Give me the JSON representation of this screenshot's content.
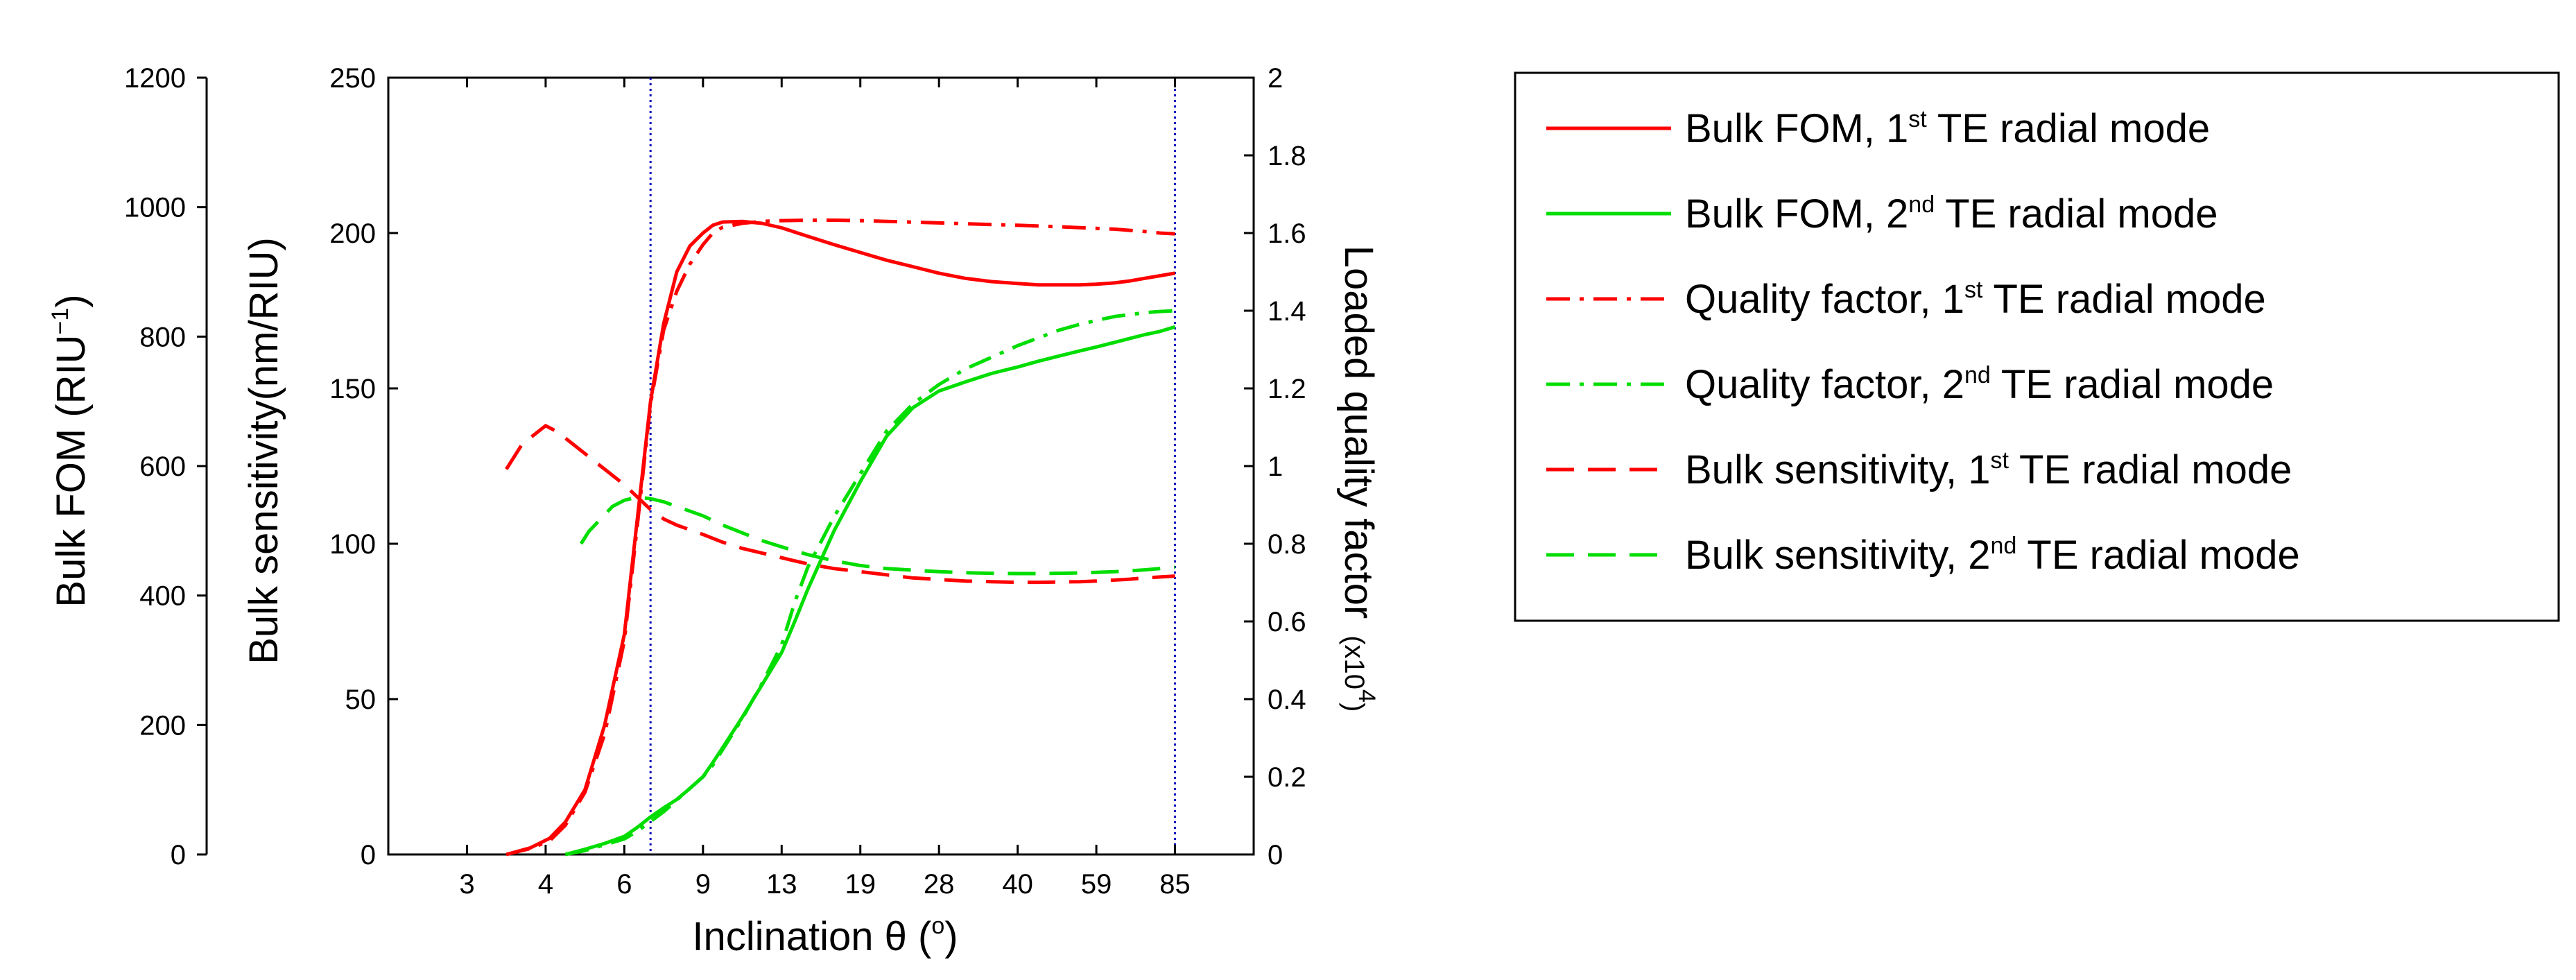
{
  "chart_data": {
    "type": "line",
    "title": "",
    "xlabel": "Inclination θ (",
    "xlabel_sup": "o",
    "xlabel_end": ")",
    "x_axis_scale": "index (non-uniform theta values)",
    "x_ticks": [
      "3",
      "4",
      "6",
      "9",
      "13",
      "19",
      "28",
      "40",
      "59",
      "85"
    ],
    "xlim": [
      2,
      86
    ],
    "vertical_markers": [
      7,
      85
    ],
    "y_axis_fom": {
      "label": "Bulk FOM (RIU",
      "label_sup": "−1",
      "label_end": ")",
      "range": [
        0,
        1200
      ],
      "ticks": [
        "0",
        "200",
        "400",
        "600",
        "800",
        "1000",
        "1200"
      ]
    },
    "y_axis_sensitivity": {
      "label": "Bulk sensitivity(nm/RIU)",
      "range": [
        0,
        250
      ],
      "ticks": [
        "0",
        "50",
        "100",
        "150",
        "200",
        "250"
      ]
    },
    "y_axis_q": {
      "label": "Loaded quality factor",
      "label_unit": "(x10",
      "label_unit_sup": "4",
      "label_unit_end": ")",
      "range": [
        0,
        2
      ],
      "ticks": [
        "0",
        "0.2",
        "0.4",
        "0.6",
        "0.8",
        "1",
        "1.2",
        "1.4",
        "1.6",
        "1.8",
        "2"
      ]
    },
    "colors": {
      "red": "#ff0000",
      "green": "#00dd00",
      "marker": "#0000bb"
    },
    "series": [
      {
        "name": "Bulk FOM, 1st TE radial mode",
        "axis": "fom",
        "color": "red",
        "style": "solid",
        "theta": [
          3.5,
          3.8,
          4.1,
          4.5,
          5,
          5.5,
          6,
          6.5,
          7,
          7.5,
          8,
          8.5,
          9,
          9.5,
          10,
          11,
          12,
          13,
          15,
          17,
          19,
          22,
          25,
          28,
          32,
          36,
          40,
          45,
          50,
          55,
          59,
          65,
          70,
          75,
          80,
          85
        ],
        "values": [
          0,
          10,
          25,
          50,
          100,
          200,
          340,
          520,
          700,
          820,
          900,
          940,
          960,
          972,
          977,
          978,
          975,
          968,
          955,
          942,
          930,
          918,
          908,
          898,
          890,
          885,
          882,
          880,
          880,
          880,
          881,
          883,
          886,
          890,
          894,
          898
        ]
      },
      {
        "name": "Bulk FOM, 2nd TE radial mode",
        "axis": "fom",
        "color": "green",
        "style": "solid",
        "theta": [
          4.5,
          5,
          5.5,
          6,
          6.5,
          7,
          7.5,
          8,
          8.5,
          9,
          9.5,
          10,
          11,
          12,
          13,
          14,
          15,
          17,
          19,
          22,
          25,
          28,
          32,
          36,
          40,
          45,
          50,
          55,
          59,
          65,
          70,
          75,
          80,
          85
        ],
        "values": [
          0,
          8,
          17,
          28,
          42,
          58,
          72,
          85,
          102,
          120,
          142,
          165,
          212,
          262,
          312,
          360,
          410,
          500,
          576,
          646,
          690,
          716,
          730,
          743,
          753,
          762,
          770,
          778,
          784,
          791,
          797,
          803,
          808,
          815
        ]
      },
      {
        "name": "Quality factor, 1st TE radial mode",
        "axis": "q",
        "color": "red",
        "style": "dashdot",
        "theta": [
          3.5,
          3.8,
          4.1,
          4.5,
          5,
          5.5,
          6,
          6.5,
          7,
          7.5,
          8,
          8.5,
          9,
          9.5,
          10,
          11,
          12,
          13,
          15,
          17,
          19,
          22,
          25,
          28,
          32,
          36,
          40,
          45,
          50,
          55,
          59,
          65,
          70,
          75,
          80,
          85
        ],
        "values": [
          0,
          0.015,
          0.035,
          0.075,
          0.16,
          0.31,
          0.55,
          0.85,
          1.16,
          1.35,
          1.45,
          1.52,
          1.57,
          1.6,
          1.615,
          1.625,
          1.63,
          1.632,
          1.633,
          1.633,
          1.632,
          1.63,
          1.628,
          1.626,
          1.624,
          1.622,
          1.62,
          1.618,
          1.616,
          1.614,
          1.612,
          1.61,
          1.607,
          1.604,
          1.6,
          1.598
        ]
      },
      {
        "name": "Quality factor, 2nd TE radial mode",
        "axis": "q",
        "color": "green",
        "style": "dashdot",
        "theta": [
          4.5,
          5,
          5.5,
          6,
          6.5,
          7,
          7.5,
          8,
          8.5,
          9,
          9.5,
          10,
          11,
          12,
          13,
          14,
          15,
          17,
          19,
          22,
          25,
          28,
          32,
          36,
          40,
          45,
          50,
          55,
          59,
          65,
          70,
          75,
          80,
          85
        ],
        "values": [
          0,
          0.01,
          0.025,
          0.04,
          0.06,
          0.085,
          0.11,
          0.14,
          0.17,
          0.2,
          0.23,
          0.27,
          0.35,
          0.44,
          0.54,
          0.65,
          0.74,
          0.87,
          0.98,
          1.09,
          1.16,
          1.21,
          1.25,
          1.28,
          1.31,
          1.33,
          1.35,
          1.365,
          1.375,
          1.385,
          1.39,
          1.395,
          1.398,
          1.4
        ]
      },
      {
        "name": "Bulk sensitivity, 1st TE radial mode",
        "axis": "sens",
        "color": "red",
        "style": "dashed",
        "theta": [
          3.5,
          3.7,
          3.9,
          4,
          4.3,
          4.7,
          5,
          5.5,
          6,
          6.5,
          7,
          7.5,
          8,
          9,
          10,
          11,
          12,
          13,
          15,
          17,
          19,
          22,
          25,
          28,
          32,
          36,
          40,
          45,
          50,
          55,
          59,
          65,
          70,
          75,
          80,
          85
        ],
        "values": [
          124,
          132,
          136,
          138,
          136,
          132,
          129,
          124,
          119,
          115,
          111,
          108,
          106,
          103,
          100.5,
          98.5,
          97,
          95.5,
          93.5,
          92,
          91,
          90,
          89,
          88.5,
          88,
          87.8,
          87.6,
          87.6,
          87.7,
          87.8,
          88,
          88.3,
          88.6,
          89,
          89.3,
          89.6
        ]
      },
      {
        "name": "Bulk sensitivity, 2nd TE radial mode",
        "axis": "sens",
        "color": "green",
        "style": "dashed",
        "theta": [
          4.9,
          5.1,
          5.4,
          5.7,
          6,
          6.5,
          7,
          7.5,
          8,
          9,
          10,
          11,
          12,
          13,
          15,
          17,
          19,
          22,
          25,
          28,
          32,
          36,
          40,
          45,
          50,
          55,
          59,
          65,
          70,
          75,
          80,
          85
        ],
        "values": [
          100,
          104,
          108,
          112,
          114,
          115,
          114.5,
          113.5,
          112,
          109,
          106,
          103.5,
          101,
          99,
          96.5,
          94.5,
          93,
          92,
          91.5,
          91,
          90.7,
          90.5,
          90.4,
          90.4,
          90.5,
          90.6,
          90.8,
          91,
          91.3,
          91.6,
          92,
          92.4
        ]
      }
    ],
    "legend": {
      "placement": "right, outside plot",
      "entries": [
        {
          "prefix": "Bulk FOM, 1",
          "sup": "st",
          "suffix": " TE radial mode",
          "color": "red",
          "style": "solid"
        },
        {
          "prefix": "Bulk FOM, 2",
          "sup": "nd",
          "suffix": " TE radial mode",
          "color": "green",
          "style": "solid"
        },
        {
          "prefix": "Quality factor, 1",
          "sup": "st",
          "suffix": " TE radial mode",
          "color": "red",
          "style": "dashdot"
        },
        {
          "prefix": "Quality factor, 2",
          "sup": "nd",
          "suffix": " TE radial mode",
          "color": "green",
          "style": "dashdot"
        },
        {
          "prefix": "Bulk sensitivity, 1",
          "sup": "st",
          "suffix": " TE radial mode",
          "color": "red",
          "style": "dashed"
        },
        {
          "prefix": "Bulk sensitivity, 2",
          "sup": "nd",
          "suffix": " TE radial mode",
          "color": "green",
          "style": "dashed"
        }
      ]
    }
  }
}
